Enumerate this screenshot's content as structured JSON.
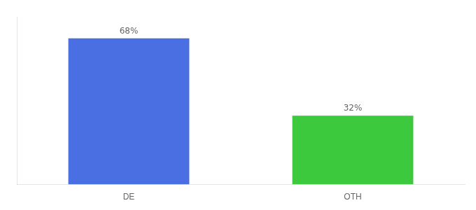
{
  "chart_data": {
    "type": "bar",
    "categories": [
      "DE",
      "OTH"
    ],
    "values": [
      68,
      32
    ],
    "value_labels": [
      "68%",
      "32%"
    ],
    "colors": [
      "#4A6FE3",
      "#3DC93D"
    ],
    "ylim": [
      0,
      78
    ],
    "data_labels": true,
    "tick_labels": "x",
    "grid": false
  }
}
